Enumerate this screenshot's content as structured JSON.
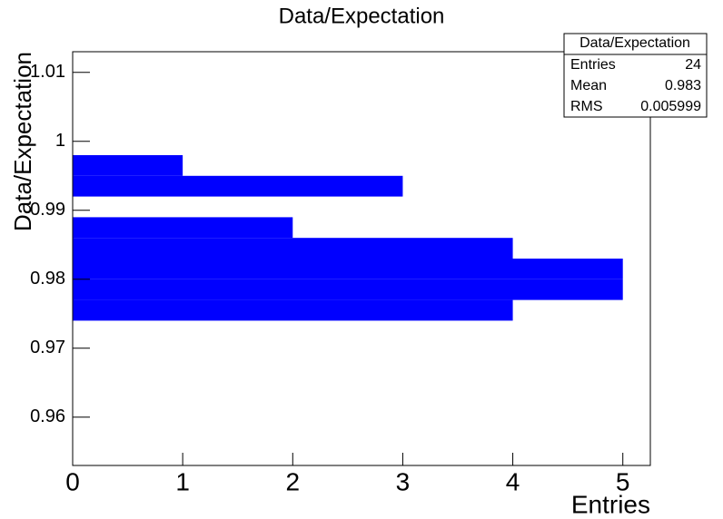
{
  "chart_data": {
    "type": "histogram",
    "orientation": "horizontal",
    "title": "Data/Expectation",
    "x_label": "Entries",
    "y_label": "Data/Expectation",
    "bins": [
      0.953,
      0.956,
      0.959,
      0.962,
      0.965,
      0.968,
      0.971,
      0.974,
      0.977,
      0.98,
      0.983,
      0.986,
      0.989,
      0.992,
      0.995,
      0.998,
      1.001,
      1.004,
      1.007,
      1.01,
      1.013
    ],
    "values": [
      0,
      0,
      0,
      0,
      0,
      0,
      0,
      4,
      5,
      5,
      4,
      2,
      0,
      3,
      1,
      0,
      0,
      0,
      0,
      0
    ],
    "color": "#0000ff",
    "xlim": [
      0,
      5.25
    ],
    "xticks": [
      0,
      1,
      2,
      3,
      4,
      5
    ],
    "ylim": [
      0.953,
      1.013
    ],
    "yticks": [
      0.96,
      0.97,
      0.98,
      0.99,
      1,
      1.01
    ],
    "stats": {
      "title": "Data/Expectation",
      "rows": [
        {
          "label": "Entries",
          "value": 24
        },
        {
          "label": "Mean",
          "value": 0.983
        },
        {
          "label": "RMS",
          "value": 0.005999
        }
      ]
    }
  }
}
